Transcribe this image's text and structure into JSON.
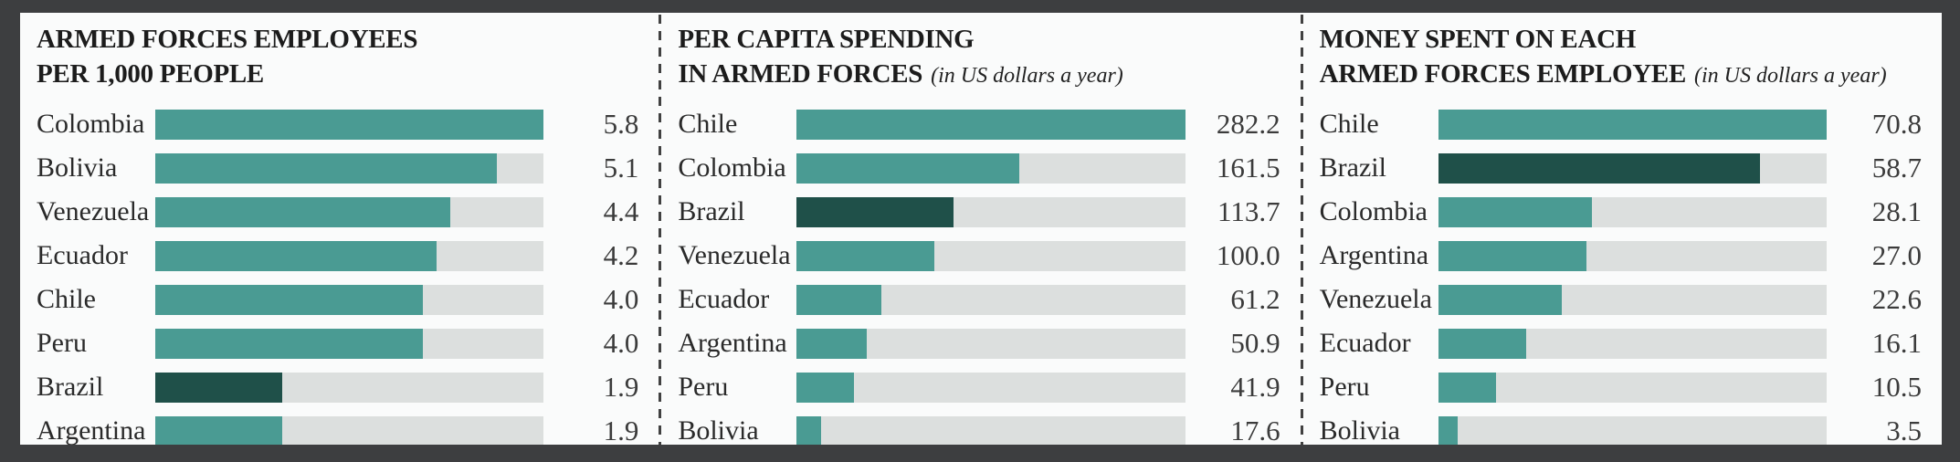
{
  "colors": {
    "frame": "#3d3e40",
    "board_bg": "#fafbfb",
    "bar": "#4a9b93",
    "bar_highlight": "#1f5049",
    "track": "#dcdfde",
    "divider": "#414141",
    "title_text": "#1c1c1c",
    "label_text": "#2a2a2a",
    "value_text": "#3b3b3b"
  },
  "chart_data": [
    {
      "type": "bar",
      "orientation": "horizontal",
      "title_line1": "ARMED FORCES EMPLOYEES",
      "title_line2": "PER 1,000 PEOPLE",
      "subtitle": "",
      "xlim": [
        0,
        5.8
      ],
      "highlight_country": "Brazil",
      "highlight_color_meaning": "Brazil emphasized",
      "grid": false,
      "legend": false,
      "rows": [
        {
          "country": "Colombia",
          "value": "5.8"
        },
        {
          "country": "Bolivia",
          "value": "5.1"
        },
        {
          "country": "Venezuela",
          "value": "4.4"
        },
        {
          "country": "Ecuador",
          "value": "4.2"
        },
        {
          "country": "Chile",
          "value": "4.0"
        },
        {
          "country": "Peru",
          "value": "4.0"
        },
        {
          "country": "Brazil",
          "value": "1.9"
        },
        {
          "country": "Argentina",
          "value": "1.9"
        }
      ]
    },
    {
      "type": "bar",
      "orientation": "horizontal",
      "title_line1": "PER CAPITA SPENDING",
      "title_line2": "IN ARMED FORCES",
      "subtitle": "(in US dollars a year)",
      "xlim": [
        0,
        282.2
      ],
      "highlight_country": "Brazil",
      "highlight_color_meaning": "Brazil emphasized",
      "grid": false,
      "legend": false,
      "rows": [
        {
          "country": "Chile",
          "value": "282.2"
        },
        {
          "country": "Colombia",
          "value": "161.5"
        },
        {
          "country": "Brazil",
          "value": "113.7"
        },
        {
          "country": "Venezuela",
          "value": "100.0"
        },
        {
          "country": "Ecuador",
          "value": "61.2"
        },
        {
          "country": "Argentina",
          "value": "50.9"
        },
        {
          "country": "Peru",
          "value": "41.9"
        },
        {
          "country": "Bolivia",
          "value": "17.6"
        }
      ]
    },
    {
      "type": "bar",
      "orientation": "horizontal",
      "title_line1": "MONEY SPENT ON EACH",
      "title_line2": "ARMED FORCES EMPLOYEE",
      "subtitle": "(in US dollars a year)",
      "xlim": [
        0,
        70.8
      ],
      "highlight_country": "Brazil",
      "highlight_color_meaning": "Brazil emphasized",
      "grid": false,
      "legend": false,
      "rows": [
        {
          "country": "Chile",
          "value": "70.8"
        },
        {
          "country": "Brazil",
          "value": "58.7"
        },
        {
          "country": "Colombia",
          "value": "28.1"
        },
        {
          "country": "Argentina",
          "value": "27.0"
        },
        {
          "country": "Venezuela",
          "value": "22.6"
        },
        {
          "country": "Ecuador",
          "value": "16.1"
        },
        {
          "country": "Peru",
          "value": "10.5"
        },
        {
          "country": "Bolivia",
          "value": "3.5"
        }
      ]
    }
  ]
}
